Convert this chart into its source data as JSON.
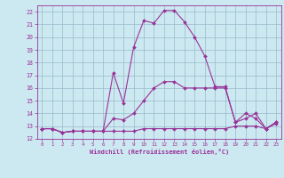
{
  "xlabel": "Windchill (Refroidissement éolien,°C)",
  "bg_color": "#cce8f0",
  "line_color": "#993399",
  "grid_color": "#99bbcc",
  "xlim": [
    -0.5,
    23.5
  ],
  "ylim": [
    12,
    22.5
  ],
  "xticks": [
    0,
    1,
    2,
    3,
    4,
    5,
    6,
    7,
    8,
    9,
    10,
    11,
    12,
    13,
    14,
    15,
    16,
    17,
    18,
    19,
    20,
    21,
    22,
    23
  ],
  "yticks": [
    12,
    13,
    14,
    15,
    16,
    17,
    18,
    19,
    20,
    21,
    22
  ],
  "line1_x": [
    0,
    1,
    2,
    3,
    4,
    5,
    6,
    7,
    8,
    9,
    10,
    11,
    12,
    13,
    14,
    15,
    16,
    17,
    18,
    19,
    20,
    21,
    22,
    23
  ],
  "line1_y": [
    12.8,
    12.8,
    12.5,
    12.6,
    12.6,
    12.6,
    12.6,
    12.6,
    12.6,
    12.6,
    12.8,
    12.8,
    12.8,
    12.8,
    12.8,
    12.8,
    12.8,
    12.8,
    12.8,
    13.0,
    13.0,
    13.0,
    12.8,
    13.2
  ],
  "line2_x": [
    0,
    1,
    2,
    3,
    4,
    5,
    6,
    7,
    8,
    9,
    10,
    11,
    12,
    13,
    14,
    15,
    16,
    17,
    18,
    19,
    20,
    21,
    22,
    23
  ],
  "line2_y": [
    12.8,
    12.8,
    12.5,
    12.6,
    12.6,
    12.6,
    12.6,
    13.6,
    13.5,
    14.0,
    15.0,
    16.0,
    16.5,
    16.5,
    16.0,
    16.0,
    16.0,
    16.0,
    16.0,
    13.3,
    13.6,
    14.0,
    12.8,
    13.3
  ],
  "line3_x": [
    0,
    1,
    2,
    3,
    4,
    5,
    6,
    7,
    8,
    9,
    10,
    11,
    12,
    13,
    14,
    15,
    16,
    17,
    18,
    19,
    20,
    21,
    22,
    23
  ],
  "line3_y": [
    12.8,
    12.8,
    12.5,
    12.6,
    12.6,
    12.6,
    12.6,
    17.2,
    14.8,
    19.2,
    21.3,
    21.1,
    22.1,
    22.1,
    21.2,
    20.0,
    18.5,
    16.1,
    16.1,
    13.3,
    14.0,
    13.6,
    12.8,
    13.3
  ]
}
